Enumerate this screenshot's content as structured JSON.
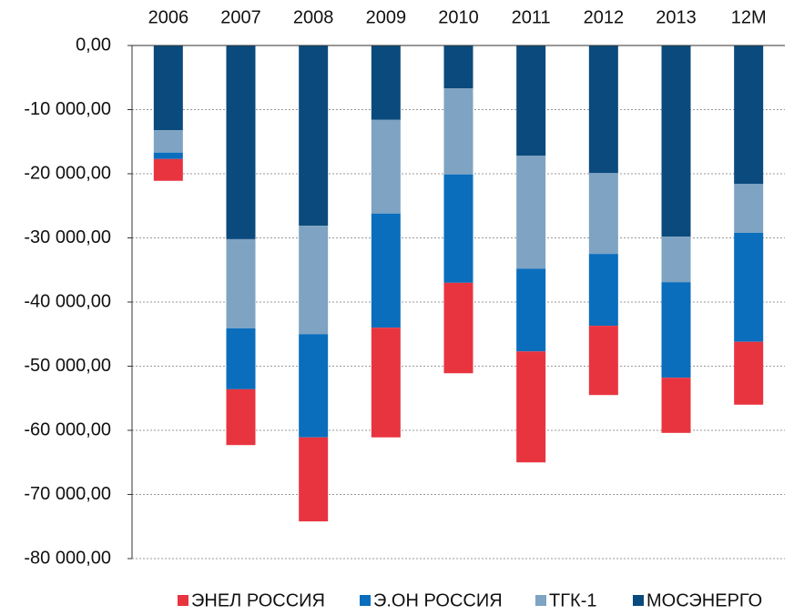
{
  "chart_data": {
    "type": "stacked_bar",
    "categories": [
      "2006",
      "2007",
      "2008",
      "2009",
      "2010",
      "2011",
      "2012",
      "2013",
      "12M"
    ],
    "series": [
      {
        "name": "МОСЭНЕРГО",
        "color": "#0b4a7c",
        "values": [
          -13200,
          -30200,
          -28100,
          -11600,
          -6700,
          -17200,
          -19900,
          -29800,
          -21600
        ]
      },
      {
        "name": "ТГК-1",
        "color": "#7fa3c2",
        "values": [
          -3500,
          -13900,
          -16900,
          -14600,
          -13400,
          -17600,
          -12600,
          -7100,
          -7600
        ]
      },
      {
        "name": "Э.ОН РОССИЯ",
        "color": "#0a6ebd",
        "values": [
          -1000,
          -9500,
          -16100,
          -17800,
          -16900,
          -12900,
          -11200,
          -14900,
          -17000
        ]
      },
      {
        "name": "ЭНЕЛ РОССИЯ",
        "color": "#e8343f",
        "values": [
          -3400,
          -8700,
          -13100,
          -17100,
          -14100,
          -17300,
          -10800,
          -8600,
          -9800
        ]
      }
    ],
    "ylim": [
      -80000,
      0
    ],
    "yticks": [
      {
        "value": 0,
        "label": "0,00"
      },
      {
        "value": -10000,
        "label": "-10 000,00"
      },
      {
        "value": -20000,
        "label": "-20 000,00"
      },
      {
        "value": -30000,
        "label": "-30 000,00"
      },
      {
        "value": -40000,
        "label": "-40 000,00"
      },
      {
        "value": -50000,
        "label": "-50 000,00"
      },
      {
        "value": -60000,
        "label": "-60 000,00"
      },
      {
        "value": -70000,
        "label": "-70 000,00"
      },
      {
        "value": -80000,
        "label": "-80 000,00"
      }
    ],
    "grid": true,
    "legend": "bottom"
  }
}
